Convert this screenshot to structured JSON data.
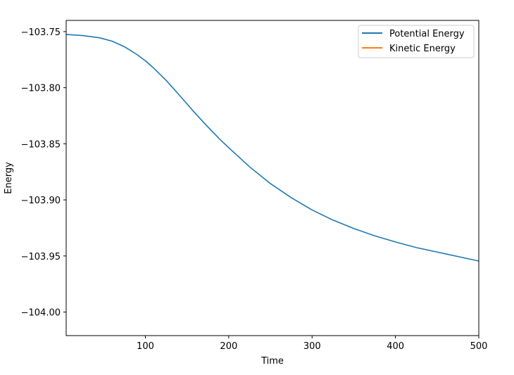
{
  "chart_data": {
    "type": "line",
    "xlabel": "Time",
    "ylabel": "Energy",
    "xlim": [
      5,
      500
    ],
    "ylim": [
      -104.021,
      -103.74
    ],
    "x_ticks": [
      100,
      200,
      300,
      400,
      500
    ],
    "x_tick_labels": [
      "100",
      "200",
      "300",
      "400",
      "500"
    ],
    "y_ticks": [
      -103.75,
      -103.8,
      -103.85,
      -103.9,
      -103.95,
      -104.0
    ],
    "y_tick_labels": [
      "−103.75",
      "−103.80",
      "−103.85",
      "−103.90",
      "−103.95",
      "−104.00"
    ],
    "grid": false,
    "legend_position": "top-right",
    "series": [
      {
        "name": "Potential Energy",
        "color": "#1f77b4",
        "x": [
          5,
          25,
          45,
          60,
          75,
          90,
          100,
          110,
          125,
          140,
          150,
          160,
          175,
          190,
          200,
          225,
          250,
          275,
          300,
          325,
          350,
          375,
          400,
          425,
          450,
          475,
          500
        ],
        "y": [
          -103.7525,
          -103.7535,
          -103.7555,
          -103.7585,
          -103.7635,
          -103.7705,
          -103.776,
          -103.7825,
          -103.7935,
          -103.806,
          -103.8145,
          -103.823,
          -103.835,
          -103.8465,
          -103.8535,
          -103.8705,
          -103.8855,
          -103.898,
          -103.909,
          -103.918,
          -103.9255,
          -103.932,
          -103.9375,
          -103.9425,
          -103.9465,
          -103.9505,
          -103.9545
        ]
      },
      {
        "name": "Kinetic Energy",
        "color": "#ff7f0e",
        "x": [],
        "y": []
      }
    ]
  }
}
